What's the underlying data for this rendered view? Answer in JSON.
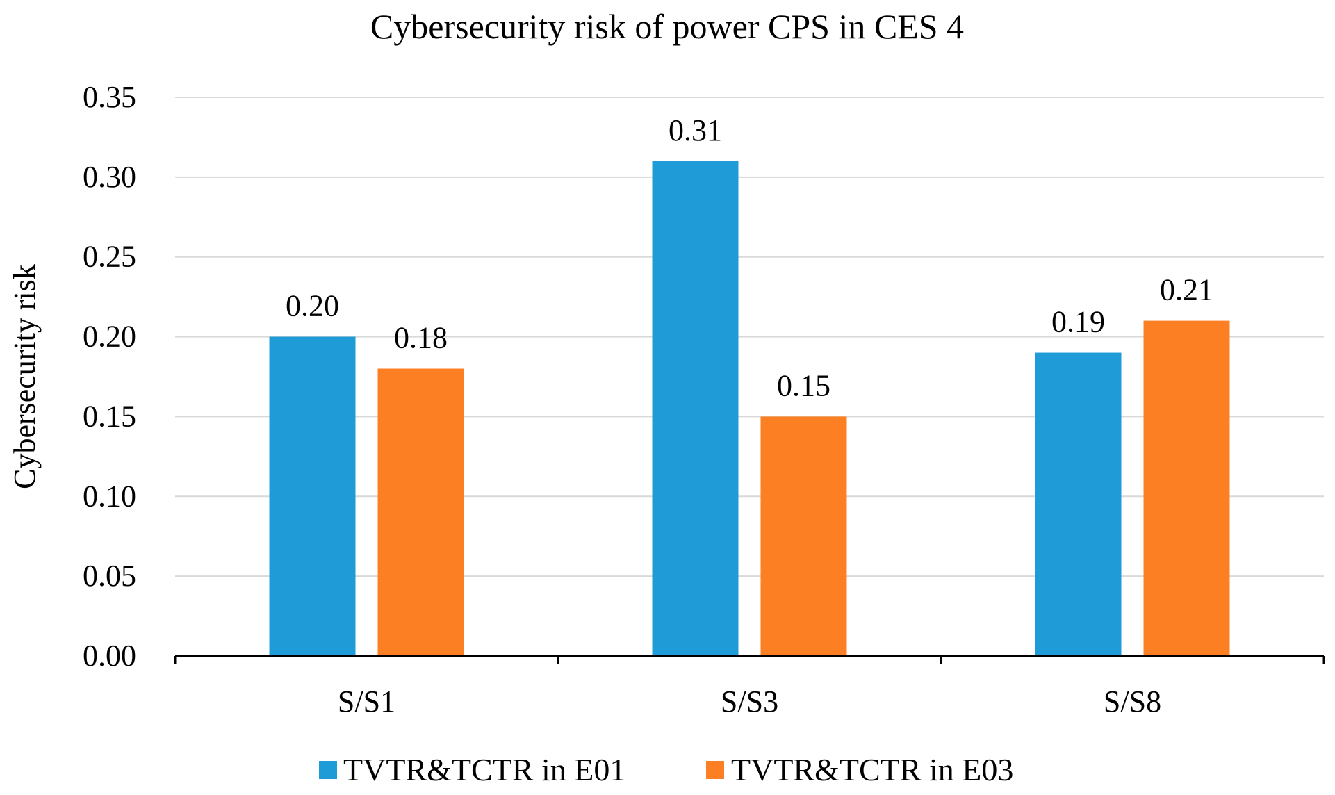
{
  "chart_data": {
    "type": "bar",
    "title": "Cybersecurity risk of  power CPS in CES 4",
    "xlabel": "",
    "ylabel": "Cybersecurity risk",
    "categories": [
      "S/S1",
      "S/S3",
      "S/S8"
    ],
    "series": [
      {
        "name": "TVTR&TCTR in E01",
        "color": "#1f9bd7",
        "values": [
          0.2,
          0.31,
          0.19
        ],
        "labels": [
          "0.20",
          "0.31",
          "0.19"
        ]
      },
      {
        "name": "TVTR&TCTR in E03",
        "color": "#fd7f23",
        "values": [
          0.18,
          0.15,
          0.21
        ],
        "labels": [
          "0.18",
          "0.15",
          "0.21"
        ]
      }
    ],
    "ylim": [
      0,
      0.35
    ],
    "yticks": [
      "0.00",
      "0.05",
      "0.10",
      "0.15",
      "0.20",
      "0.25",
      "0.30",
      "0.35"
    ],
    "grid": true,
    "legend": "bottom"
  }
}
